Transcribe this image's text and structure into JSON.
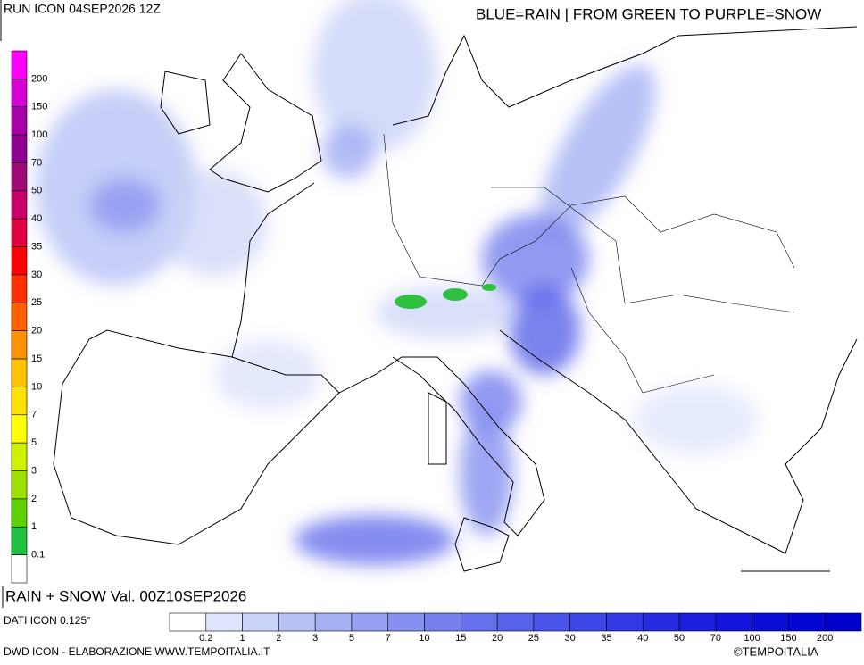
{
  "header": {
    "title": "RUN ICON 04SEP2026 12Z",
    "legend_note": "BLUE=RAIN | FROM GREEN TO PURPLE=SNOW"
  },
  "snow_scale": {
    "labels": [
      200,
      150,
      100,
      70,
      50,
      40,
      35,
      30,
      25,
      20,
      15,
      10,
      7,
      5,
      3,
      2,
      1,
      0.1
    ],
    "colors": [
      "#ff00ff",
      "#d400d4",
      "#a800a8",
      "#900090",
      "#a00878",
      "#c8006a",
      "#e00040",
      "#ff0000",
      "#ff3000",
      "#ff6000",
      "#ff9000",
      "#ffc000",
      "#ffe000",
      "#ffff00",
      "#d0f000",
      "#a0e000",
      "#60d000",
      "#20c040",
      "#ffffff"
    ]
  },
  "rain_scale": {
    "labels": [
      0.2,
      1,
      2,
      3,
      5,
      7,
      10,
      15,
      20,
      25,
      30,
      35,
      40,
      50,
      70,
      100,
      150,
      200
    ],
    "colors": [
      "#ffffff",
      "#dde4fb",
      "#cad3f8",
      "#b8c2f6",
      "#a6b1f4",
      "#96a0f2",
      "#8590f0",
      "#7580ee",
      "#6670ec",
      "#5762ea",
      "#4a54e8",
      "#3d46e6",
      "#3138e4",
      "#262be2",
      "#1c1fe0",
      "#1214dc",
      "#0a0cd8",
      "#0406d4",
      "#0000cc"
    ]
  },
  "footer": {
    "product": "RAIN + SNOW Val. 00Z10SEP2026",
    "data_source": "DATI ICON 0.125°",
    "credit": "DWD ICON - ELABORAZIONE WWW.TEMPOITALIA.IT",
    "copyright": "©TEMPOITALIA"
  }
}
